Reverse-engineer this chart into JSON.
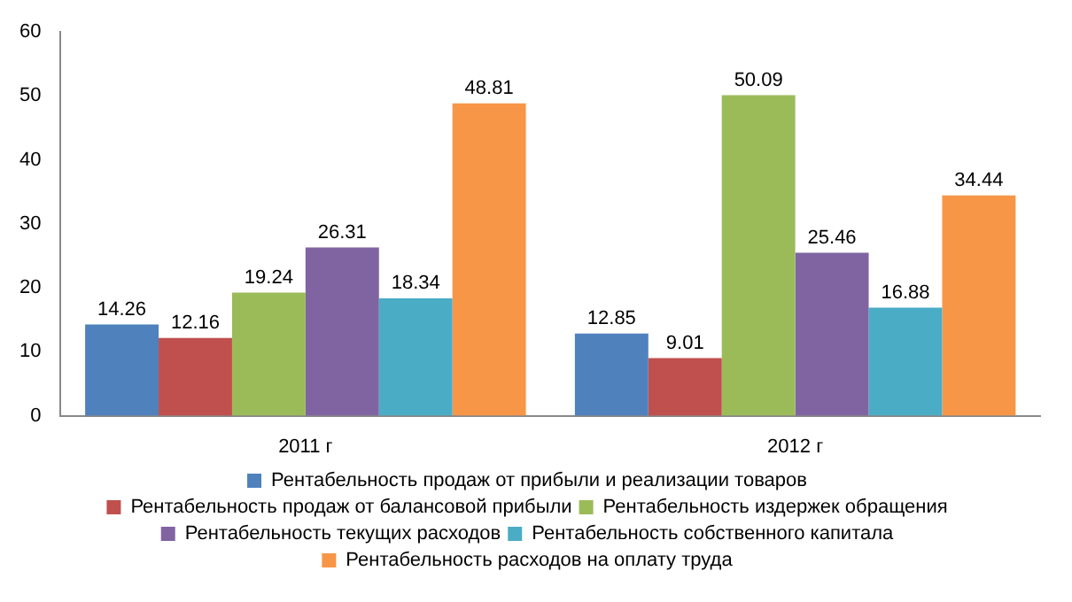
{
  "chart_data": {
    "type": "bar",
    "categories": [
      "2011 г",
      "2012 г"
    ],
    "series": [
      {
        "name": "Рентабельность продаж от прибыли и реализации товаров",
        "color": "#4f81bd",
        "values": [
          14.26,
          12.85
        ]
      },
      {
        "name": "Рентабельность продаж от балансовой прибыли",
        "color": "#c0504d",
        "values": [
          12.16,
          9.01
        ]
      },
      {
        "name": "Рентабельность издержек обращения",
        "color": "#9bbb59",
        "values": [
          19.24,
          50.09
        ]
      },
      {
        "name": "Рентабельность текущих расходов",
        "color": "#8064a2",
        "values": [
          26.31,
          25.46
        ]
      },
      {
        "name": "Рентабельность собственного капитала",
        "color": "#4bacc6",
        "values": [
          18.34,
          16.88
        ]
      },
      {
        "name": "Рентабельность расходов на оплату труда",
        "color": "#f79646",
        "values": [
          48.81,
          34.44
        ]
      }
    ],
    "ylim": [
      0,
      60
    ],
    "yticks": [
      0,
      10,
      20,
      30,
      40,
      50,
      60
    ],
    "grid": false,
    "legend": "bottom",
    "data_labels": true
  }
}
